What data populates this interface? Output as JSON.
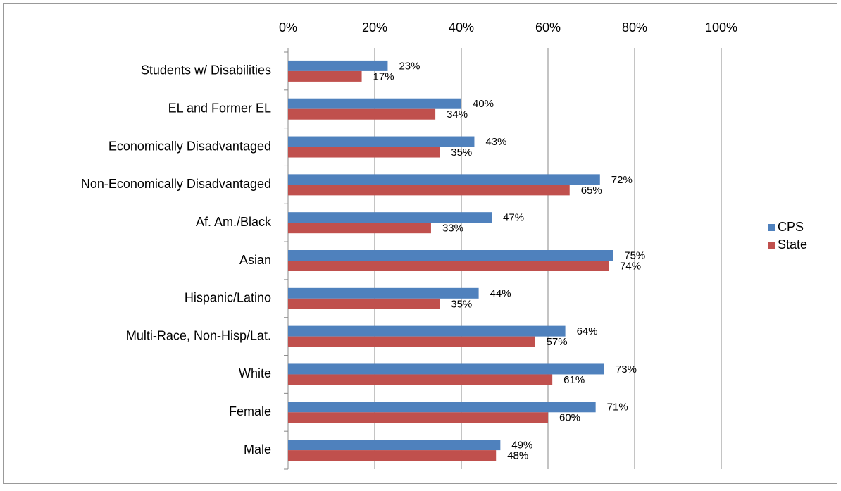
{
  "chart_data": {
    "type": "bar",
    "orientation": "horizontal",
    "categories": [
      "Students w/ Disabilities",
      "EL and Former EL",
      "Economically Disadvantaged",
      "Non-Economically Disadvantaged",
      "Af. Am./Black",
      "Asian",
      "Hispanic/Latino",
      "Multi-Race, Non-Hisp/Lat.",
      "White",
      "Female",
      "Male"
    ],
    "series": [
      {
        "name": "CPS",
        "color": "#4f81bd",
        "values": [
          23,
          40,
          43,
          72,
          47,
          75,
          44,
          64,
          73,
          71,
          49
        ],
        "value_labels": [
          "23%",
          "40%",
          "43%",
          "72%",
          "47%",
          "75%",
          "44%",
          "64%",
          "73%",
          "71%",
          "49%"
        ]
      },
      {
        "name": "State",
        "color": "#c0504d",
        "values": [
          17,
          34,
          35,
          65,
          33,
          74,
          35,
          57,
          61,
          60,
          48
        ],
        "value_labels": [
          "17%",
          "34%",
          "35%",
          "65%",
          "33%",
          "74%",
          "35%",
          "57%",
          "61%",
          "60%",
          "48%"
        ]
      }
    ],
    "xlim": [
      0,
      100
    ],
    "xticks": [
      {
        "value": 0,
        "label": "0%"
      },
      {
        "value": 20,
        "label": "20%"
      },
      {
        "value": 40,
        "label": "40%"
      },
      {
        "value": 60,
        "label": "60%"
      },
      {
        "value": 80,
        "label": "80%"
      },
      {
        "value": 100,
        "label": "100%"
      }
    ],
    "grid": true,
    "legend": "right"
  }
}
